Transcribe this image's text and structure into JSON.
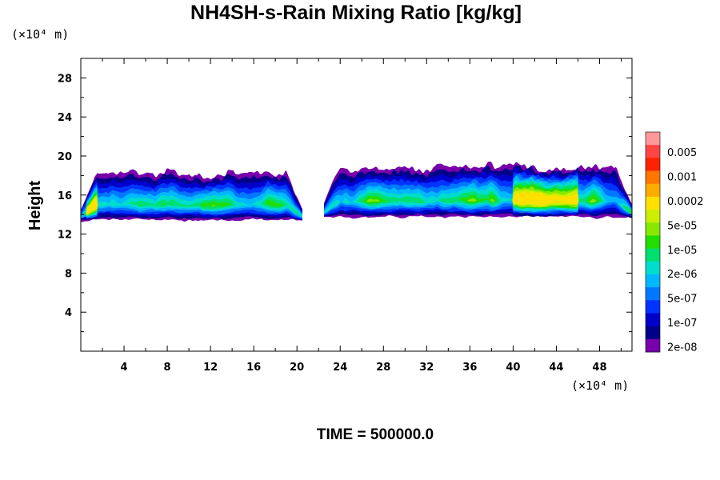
{
  "chart_data": {
    "type": "heatmap",
    "title": "NH4SH-s-Rain Mixing Ratio [kg/kg]",
    "ylabel": "Height",
    "y_unit": "(×10⁴ m)",
    "x_unit": "(×10⁴ m)",
    "footer": "TIME = 500000.0",
    "xlim": [
      0,
      51
    ],
    "ylim": [
      0,
      30
    ],
    "x_ticks": [
      4,
      8,
      12,
      16,
      20,
      24,
      28,
      32,
      36,
      40,
      44,
      48
    ],
    "y_ticks": [
      4,
      8,
      12,
      16,
      20,
      24,
      28
    ],
    "colorbar": {
      "labels": [
        "0.005",
        "0.001",
        "0.0002",
        "5e-05",
        "1e-05",
        "2e-06",
        "5e-07",
        "1e-07",
        "2e-08"
      ],
      "colors": [
        "#ff9999",
        "#ff4444",
        "#ff2200",
        "#ff7700",
        "#ffaa00",
        "#ffe000",
        "#ccee00",
        "#88e800",
        "#22dd00",
        "#00e070",
        "#00ddcc",
        "#00b8ff",
        "#0077ff",
        "#0033ff",
        "#0000cc",
        "#000088",
        "#7700aa"
      ]
    },
    "levels_legend": "outer edge = 2e-08 (purple) increasing inward to ~0.0002 (orange)",
    "regions": [
      {
        "x0": 0,
        "x1": 20.5,
        "bottom": 13.2,
        "top": 19.5,
        "peak_level": 5,
        "core_x": [
          0.5,
          1.5
        ],
        "core_y": [
          14.4,
          15.4
        ]
      },
      {
        "x0": 22.5,
        "x1": 51,
        "bottom": 13.5,
        "top": 20.2,
        "peak_level": 5,
        "core_x": [
          40,
          46
        ],
        "core_y": [
          14.2,
          16.0
        ]
      }
    ]
  }
}
